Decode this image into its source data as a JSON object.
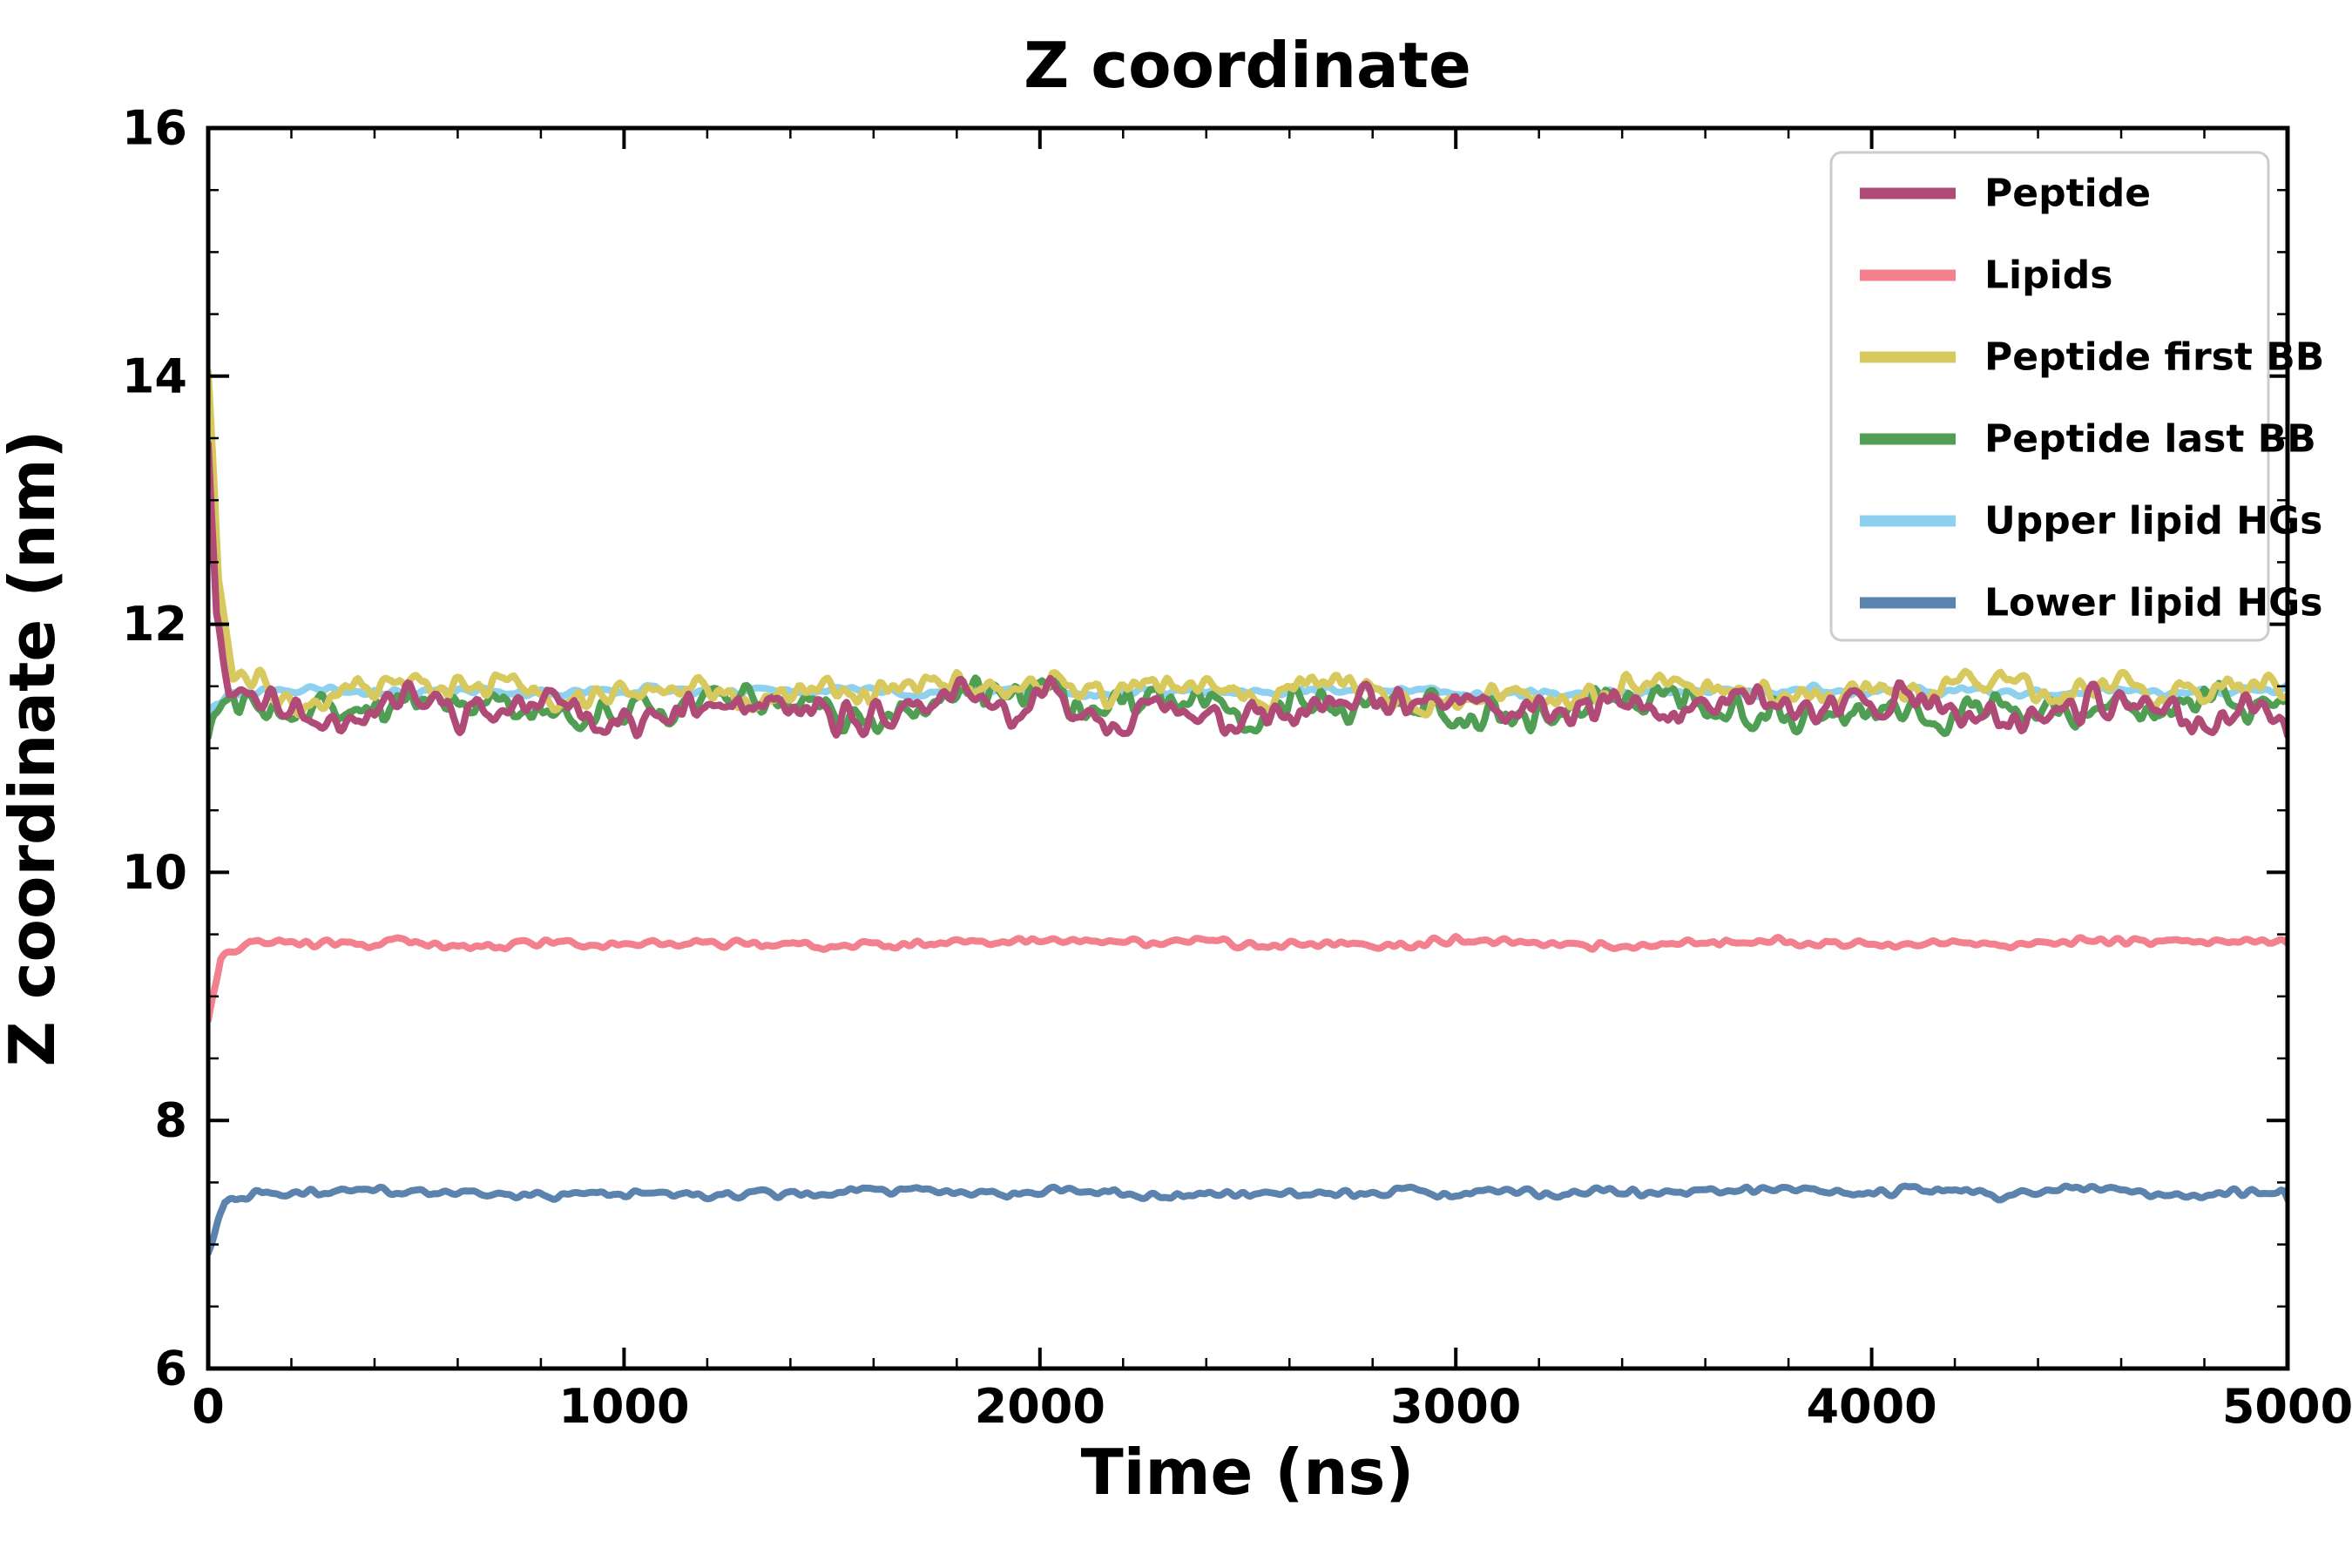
{
  "chart_data": {
    "type": "line",
    "title": "Z coordinate",
    "xlabel": "Time (ns)",
    "ylabel": "Z coordinate (nm)",
    "xlim": [
      0,
      5000
    ],
    "ylim": [
      6,
      16
    ],
    "x_major_ticks": [
      0,
      1000,
      2000,
      3000,
      4000,
      5000
    ],
    "x_minor_step": 200,
    "y_major_ticks": [
      6,
      8,
      10,
      12,
      14,
      16
    ],
    "y_minor_step": 0.5,
    "grid": false,
    "legend_position": "upper right",
    "x_step": 5,
    "line_width": 8,
    "colors": {
      "spine": "#000000",
      "background": "#ffffff",
      "legend_border": "#cccccc",
      "legend_background": "#ffffff"
    },
    "series": [
      {
        "name": "Peptide",
        "color": "#b04a76",
        "z": 4,
        "seed": 11,
        "noise_std": 0.085,
        "points": [
          [
            0,
            13.6
          ],
          [
            20,
            12.1
          ],
          [
            50,
            11.45
          ],
          [
            150,
            11.32
          ],
          [
            1000,
            11.31
          ],
          [
            2000,
            11.33
          ],
          [
            3000,
            11.33
          ],
          [
            4000,
            11.32
          ],
          [
            5000,
            11.3
          ]
        ]
      },
      {
        "name": "Lipids",
        "color": "#f2808f",
        "z": 5,
        "seed": 22,
        "noise_std": 0.02,
        "points": [
          [
            0,
            8.85
          ],
          [
            30,
            9.3
          ],
          [
            100,
            9.42
          ],
          [
            1000,
            9.43
          ],
          [
            2500,
            9.43
          ],
          [
            5000,
            9.44
          ]
        ]
      },
      {
        "name": "Peptide first BB",
        "color": "#d8c95f",
        "z": 3,
        "seed": 33,
        "noise_std": 0.065,
        "points": [
          [
            0,
            14.2
          ],
          [
            25,
            12.4
          ],
          [
            60,
            11.55
          ],
          [
            150,
            11.47
          ],
          [
            2500,
            11.46
          ],
          [
            5000,
            11.47
          ]
        ]
      },
      {
        "name": "Peptide last BB",
        "color": "#4f9e54",
        "z": 2,
        "seed": 44,
        "noise_std": 0.085,
        "points": [
          [
            0,
            11.1
          ],
          [
            60,
            11.3
          ],
          [
            150,
            11.34
          ],
          [
            2500,
            11.33
          ],
          [
            5000,
            11.32
          ]
        ]
      },
      {
        "name": "Upper lipid HGs",
        "color": "#8ed1ee",
        "z": 1,
        "seed": 55,
        "noise_std": 0.02,
        "points": [
          [
            0,
            11.3
          ],
          [
            60,
            11.45
          ],
          [
            1000,
            11.46
          ],
          [
            5000,
            11.46
          ]
        ]
      },
      {
        "name": "Lower lipid HGs",
        "color": "#5b83ad",
        "z": 0,
        "seed": 66,
        "noise_std": 0.02,
        "points": [
          [
            0,
            6.95
          ],
          [
            40,
            7.35
          ],
          [
            120,
            7.42
          ],
          [
            2500,
            7.42
          ],
          [
            5000,
            7.43
          ]
        ]
      }
    ]
  }
}
